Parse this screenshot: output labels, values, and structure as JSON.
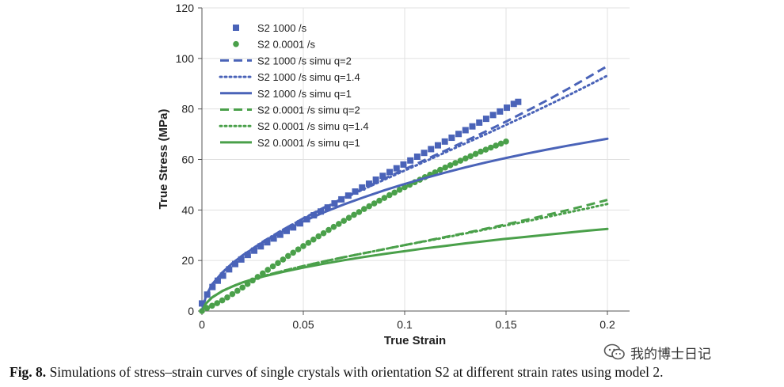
{
  "chart_data": {
    "type": "scatter",
    "xlabel": "True Strain",
    "ylabel": "True Stress (MPa)",
    "xlim": [
      0,
      0.2
    ],
    "ylim": [
      0,
      120
    ],
    "xticks": [
      0,
      0.05,
      0.1,
      0.15,
      0.2
    ],
    "xtick_labels": [
      "0",
      "0.05",
      "0.1",
      "0.15",
      "0.2"
    ],
    "yticks": [
      0,
      20,
      40,
      60,
      80,
      100,
      120
    ],
    "ytick_labels": [
      "0",
      "20",
      "40",
      "60",
      "80",
      "100",
      "120"
    ],
    "legend_position": "top-left",
    "series": [
      {
        "name": "S2 1000 /s",
        "style": "square-markers",
        "color": "#4a63b8",
        "x": [
          0.0,
          0.0026,
          0.0052,
          0.0078,
          0.0104,
          0.0134,
          0.0164,
          0.0194,
          0.0226,
          0.0258,
          0.029,
          0.0322,
          0.0354,
          0.0386,
          0.0418,
          0.045,
          0.0484,
          0.0518,
          0.0552,
          0.0586,
          0.062,
          0.0654,
          0.0688,
          0.0722,
          0.0756,
          0.079,
          0.0824,
          0.0858,
          0.0892,
          0.0926,
          0.096,
          0.0994,
          0.1028,
          0.1062,
          0.1096,
          0.113,
          0.1164,
          0.1198,
          0.1232,
          0.1266,
          0.13,
          0.1334,
          0.1368,
          0.1402,
          0.1436,
          0.147,
          0.1504,
          0.1538,
          0.156
        ],
        "y": [
          3.0,
          6.5,
          9.5,
          12.0,
          14.0,
          16.5,
          18.6,
          20.4,
          22.2,
          23.9,
          25.6,
          27.2,
          28.7,
          30.2,
          31.7,
          33.1,
          34.7,
          36.3,
          37.9,
          39.4,
          41.0,
          42.6,
          44.2,
          45.7,
          47.3,
          48.9,
          50.4,
          52.0,
          53.5,
          55.0,
          56.5,
          58.0,
          59.6,
          61.1,
          62.6,
          64.1,
          65.6,
          67.1,
          68.6,
          70.1,
          71.6,
          73.1,
          74.6,
          76.1,
          77.6,
          79.0,
          80.5,
          82.0,
          82.8
        ]
      },
      {
        "name": "S2 0.0001 /s",
        "style": "circle-markers",
        "color": "#4aa04a",
        "x": [
          0.0,
          0.0025,
          0.005,
          0.0075,
          0.01,
          0.0125,
          0.015,
          0.0175,
          0.02,
          0.0225,
          0.025,
          0.0275,
          0.03,
          0.0325,
          0.035,
          0.0375,
          0.04,
          0.0425,
          0.045,
          0.0475,
          0.05,
          0.0525,
          0.055,
          0.0575,
          0.06,
          0.0625,
          0.065,
          0.0675,
          0.07,
          0.0725,
          0.075,
          0.0775,
          0.08,
          0.0825,
          0.085,
          0.0875,
          0.09,
          0.0925,
          0.095,
          0.0975,
          0.1,
          0.1025,
          0.105,
          0.1075,
          0.11,
          0.1125,
          0.115,
          0.1175,
          0.12,
          0.1225,
          0.125,
          0.1275,
          0.13,
          0.1325,
          0.135,
          0.1375,
          0.14,
          0.1425,
          0.145,
          0.1475,
          0.15
        ],
        "y": [
          0.0,
          1.2,
          2.1,
          3.1,
          4.2,
          5.4,
          6.7,
          8.0,
          9.3,
          10.7,
          12.1,
          13.5,
          14.9,
          16.3,
          17.7,
          19.0,
          20.4,
          21.8,
          23.1,
          24.4,
          25.7,
          27.0,
          28.3,
          29.6,
          30.8,
          32.1,
          33.3,
          34.5,
          35.7,
          36.9,
          38.1,
          39.2,
          40.4,
          41.5,
          42.6,
          43.7,
          44.8,
          45.9,
          46.9,
          48.0,
          49.0,
          50.0,
          51.0,
          52.0,
          53.0,
          54.0,
          54.9,
          55.9,
          56.8,
          57.7,
          58.6,
          59.5,
          60.4,
          61.3,
          62.2,
          63.1,
          63.9,
          64.7,
          65.5,
          66.3,
          67.1
        ]
      },
      {
        "name": "S2 1000 /s simu q=2",
        "style": "dashed",
        "color": "#4a63b8",
        "x": [
          0.0,
          0.002,
          0.005,
          0.01,
          0.015,
          0.02,
          0.03,
          0.04,
          0.05,
          0.06,
          0.07,
          0.08,
          0.09,
          0.1,
          0.11,
          0.12,
          0.13,
          0.14,
          0.15,
          0.16,
          0.17,
          0.18,
          0.19,
          0.2
        ],
        "y": [
          0.0,
          6.0,
          10.5,
          15.2,
          18.9,
          22.0,
          27.4,
          32.2,
          36.7,
          40.9,
          44.8,
          48.6,
          52.4,
          56.1,
          59.8,
          63.5,
          67.3,
          71.1,
          75.0,
          79.1,
          83.3,
          87.7,
          92.3,
          97.0
        ]
      },
      {
        "name": "S2 1000 /s simu q=1.4",
        "style": "dotted",
        "color": "#4a63b8",
        "x": [
          0.0,
          0.002,
          0.005,
          0.01,
          0.015,
          0.02,
          0.03,
          0.04,
          0.05,
          0.06,
          0.07,
          0.08,
          0.09,
          0.1,
          0.11,
          0.12,
          0.13,
          0.14,
          0.15,
          0.16,
          0.17,
          0.18,
          0.19,
          0.2
        ],
        "y": [
          0.0,
          6.0,
          10.5,
          15.2,
          18.9,
          22.0,
          27.4,
          32.2,
          36.6,
          40.7,
          44.6,
          48.3,
          52.0,
          55.6,
          59.2,
          62.8,
          66.4,
          70.0,
          73.7,
          77.4,
          81.2,
          85.1,
          89.1,
          93.2
        ]
      },
      {
        "name": "S2 1000 /s simu q=1",
        "style": "solid",
        "color": "#4a63b8",
        "x": [
          0.0,
          0.002,
          0.005,
          0.01,
          0.015,
          0.02,
          0.03,
          0.04,
          0.05,
          0.06,
          0.07,
          0.08,
          0.09,
          0.1,
          0.11,
          0.12,
          0.13,
          0.14,
          0.15,
          0.16,
          0.17,
          0.18,
          0.19,
          0.2
        ],
        "y": [
          0.0,
          6.0,
          10.5,
          15.2,
          18.9,
          22.0,
          27.2,
          31.6,
          35.5,
          39.0,
          42.2,
          45.1,
          47.8,
          50.3,
          52.6,
          54.8,
          56.9,
          58.8,
          60.6,
          62.3,
          63.9,
          65.4,
          66.8,
          68.2
        ]
      },
      {
        "name": "S2 0.0001 /s simu q=2",
        "style": "dashed",
        "color": "#4aa04a",
        "x": [
          0.0,
          0.002,
          0.005,
          0.01,
          0.015,
          0.02,
          0.03,
          0.04,
          0.05,
          0.06,
          0.07,
          0.08,
          0.09,
          0.1,
          0.11,
          0.12,
          0.13,
          0.14,
          0.15,
          0.16,
          0.17,
          0.18,
          0.19,
          0.2
        ],
        "y": [
          0.0,
          3.0,
          5.4,
          7.9,
          9.7,
          11.3,
          13.8,
          15.9,
          17.8,
          19.6,
          21.3,
          22.9,
          24.5,
          26.1,
          27.7,
          29.3,
          30.9,
          32.6,
          34.3,
          36.1,
          38.0,
          39.9,
          41.9,
          44.0
        ]
      },
      {
        "name": "S2 0.0001 /s simu q=1.4",
        "style": "dotted",
        "color": "#4aa04a",
        "x": [
          0.0,
          0.002,
          0.005,
          0.01,
          0.015,
          0.02,
          0.03,
          0.04,
          0.05,
          0.06,
          0.07,
          0.08,
          0.09,
          0.1,
          0.11,
          0.12,
          0.13,
          0.14,
          0.15,
          0.16,
          0.17,
          0.18,
          0.19,
          0.2
        ],
        "y": [
          0.0,
          3.0,
          5.4,
          7.9,
          9.7,
          11.3,
          13.8,
          15.9,
          17.8,
          19.6,
          21.3,
          22.9,
          24.5,
          26.1,
          27.6,
          29.1,
          30.7,
          32.3,
          33.9,
          35.5,
          37.2,
          38.9,
          40.6,
          42.4
        ]
      },
      {
        "name": "S2 0.0001 /s simu q=1",
        "style": "solid",
        "color": "#4aa04a",
        "x": [
          0.0,
          0.002,
          0.005,
          0.01,
          0.015,
          0.02,
          0.03,
          0.04,
          0.05,
          0.06,
          0.07,
          0.08,
          0.09,
          0.1,
          0.11,
          0.12,
          0.13,
          0.14,
          0.15,
          0.16,
          0.17,
          0.18,
          0.19,
          0.2
        ],
        "y": [
          0.0,
          3.0,
          5.4,
          7.9,
          9.7,
          11.3,
          13.6,
          15.5,
          17.2,
          18.7,
          20.1,
          21.4,
          22.6,
          23.7,
          24.8,
          25.8,
          26.8,
          27.7,
          28.6,
          29.4,
          30.2,
          31.0,
          31.8,
          32.5
        ]
      }
    ]
  },
  "watermark": {
    "icon": "wechat-icon",
    "text": "我的博士日记"
  },
  "caption": {
    "label": "Fig. 8.",
    "text": "Simulations of stress–strain curves of single crystals with orientation S2 at different strain rates using model 2."
  }
}
